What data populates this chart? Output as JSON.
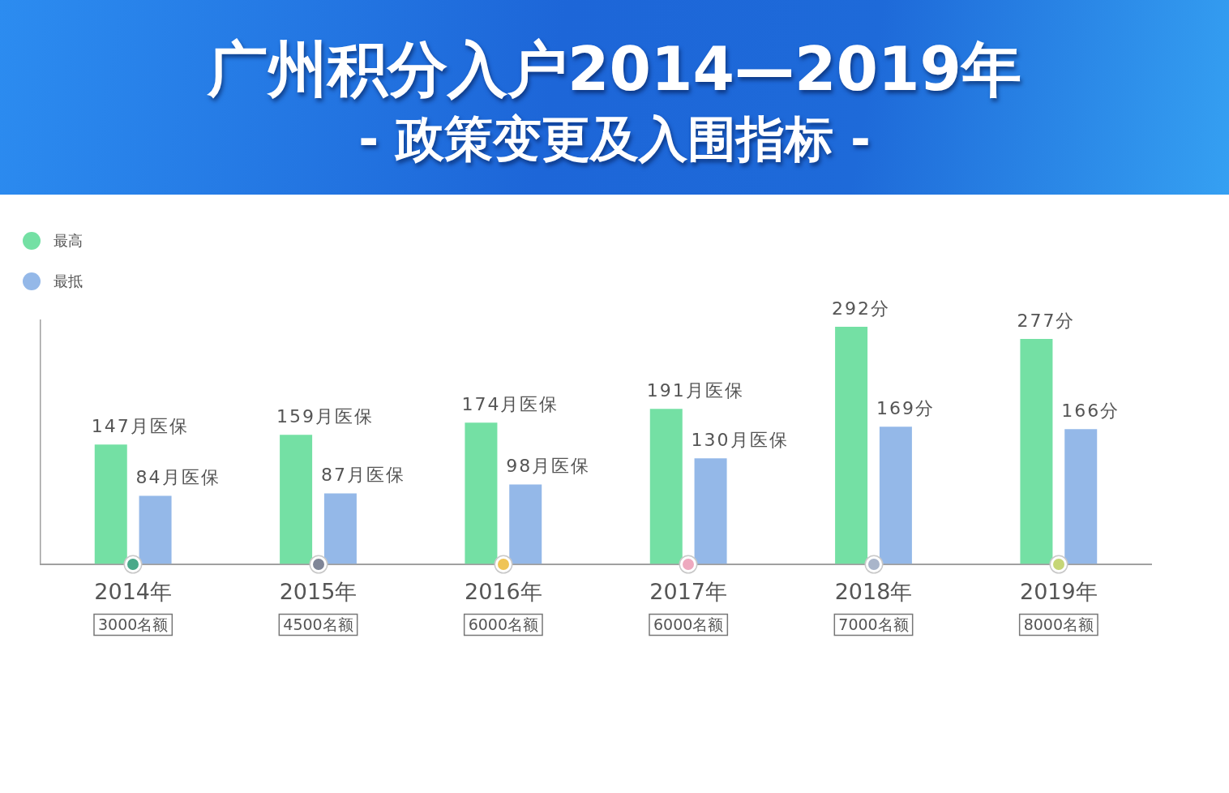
{
  "chart_data": {
    "type": "bar",
    "title": "广州积分入户2014—2019年",
    "subtitle": "- 政策变更及入围指标 -",
    "categories": [
      "2014年",
      "2015年",
      "2016年",
      "2017年",
      "2018年",
      "2019年"
    ],
    "series": [
      {
        "name": "最高",
        "color": "#74e0a4",
        "values": [
          147,
          159,
          174,
          191,
          292,
          277
        ],
        "value_labels": [
          "147月医保",
          "159月医保",
          "174月医保",
          "191月医保",
          "292分",
          "277分"
        ]
      },
      {
        "name": "最抵",
        "color": "#94b8e8",
        "values": [
          84,
          87,
          98,
          130,
          169,
          166
        ],
        "value_labels": [
          "84月医保",
          "87月医保",
          "98月医保",
          "130月医保",
          "169分",
          "166分"
        ]
      }
    ],
    "ylim": [
      0,
      300
    ],
    "tick_labels": "x",
    "grid": false,
    "legend": "top left",
    "annotations": [
      "3000名额",
      "4500名额",
      "6000名额",
      "6000名额",
      "7000名额",
      "8000名额"
    ]
  }
}
